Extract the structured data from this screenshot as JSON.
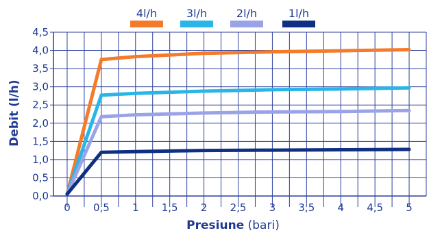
{
  "chart_data": {
    "type": "line",
    "xlabel": "Presiune",
    "xlabel_unit": " (bari)",
    "ylabel": "Debit (l/h)",
    "xlim": [
      -0.2,
      5.25
    ],
    "ylim": [
      0,
      4.5
    ],
    "x_ticks": [
      0,
      0.5,
      1,
      1.5,
      2,
      2.5,
      3,
      3.5,
      4,
      4.5,
      5
    ],
    "x_tick_labels": [
      "0",
      "0,5",
      "1",
      "1,5",
      "2",
      "2,5",
      "3",
      "3,5",
      "4",
      "4,5",
      "5"
    ],
    "y_ticks": [
      0,
      0.5,
      1,
      1.5,
      2,
      2.5,
      3,
      3.5,
      4,
      4.5
    ],
    "y_tick_labels": [
      "0,0",
      "0,5",
      "1,0",
      "1,5",
      "2,0",
      "2,5",
      "3,0",
      "3,5",
      "4,0",
      "4,5"
    ],
    "grid": true,
    "legend_position": "top",
    "series": [
      {
        "name": "4l/h",
        "color": "#f47b2a",
        "x": [
          0,
          0.5,
          1,
          2,
          3,
          4,
          5
        ],
        "y": [
          0.05,
          3.75,
          3.83,
          3.92,
          3.96,
          3.99,
          4.02
        ]
      },
      {
        "name": "3l/h",
        "color": "#2ab5e8",
        "x": [
          0,
          0.5,
          1,
          2,
          3,
          4,
          5
        ],
        "y": [
          0.05,
          2.77,
          2.82,
          2.88,
          2.92,
          2.94,
          2.97
        ]
      },
      {
        "name": "2l/h",
        "color": "#9aa3e8",
        "x": [
          0,
          0.5,
          1,
          2,
          3,
          4,
          5
        ],
        "y": [
          0.05,
          2.18,
          2.23,
          2.28,
          2.31,
          2.32,
          2.35
        ]
      },
      {
        "name": "1l/h",
        "color": "#0e2f82",
        "x": [
          0,
          0.5,
          1,
          2,
          3,
          4,
          5
        ],
        "y": [
          0.05,
          1.2,
          1.22,
          1.25,
          1.26,
          1.27,
          1.28
        ]
      }
    ]
  }
}
